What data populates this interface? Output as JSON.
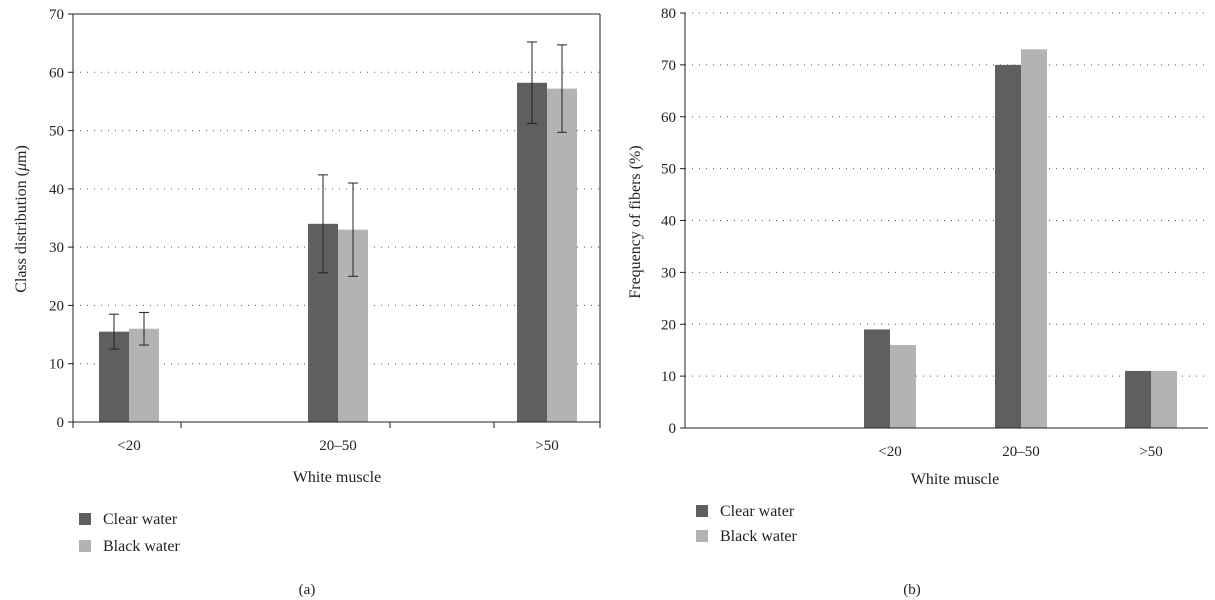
{
  "chart_data": [
    {
      "type": "bar",
      "panel_label": "(a)",
      "categories": [
        "<20",
        "20–50",
        ">50"
      ],
      "series": [
        {
          "name": "Clear water",
          "color": "#5f5f5f",
          "values": [
            15.5,
            34,
            58.2
          ],
          "errors": [
            3,
            8.4,
            7
          ]
        },
        {
          "name": "Black water",
          "color": "#b3b3b3",
          "values": [
            16,
            33,
            57.2
          ],
          "errors": [
            2.8,
            8,
            7.5
          ]
        }
      ],
      "xlabel": "White muscle",
      "ylabel_prefix": "Class distribution (",
      "ylabel_unit": "μ",
      "ylabel_suffix": "m)",
      "ylim": [
        0,
        70
      ],
      "yticks": [
        "0",
        "10",
        "20",
        "30",
        "40",
        "50",
        "60",
        "70"
      ],
      "grid": true,
      "legend": "bottom-left"
    },
    {
      "type": "bar",
      "panel_label": "(b)",
      "categories": [
        "<20",
        "20–50",
        ">50"
      ],
      "series": [
        {
          "name": "Clear water",
          "color": "#5f5f5f",
          "values": [
            19,
            70,
            11
          ]
        },
        {
          "name": "Black water",
          "color": "#b3b3b3",
          "values": [
            16,
            73,
            11
          ]
        }
      ],
      "xlabel": "White muscle",
      "ylabel": "Frequency of fibers (%)",
      "ylim": [
        0,
        80
      ],
      "yticks": [
        "0",
        "10",
        "20",
        "30",
        "40",
        "50",
        "60",
        "70",
        "80"
      ],
      "grid": true,
      "legend": "bottom-left"
    }
  ]
}
